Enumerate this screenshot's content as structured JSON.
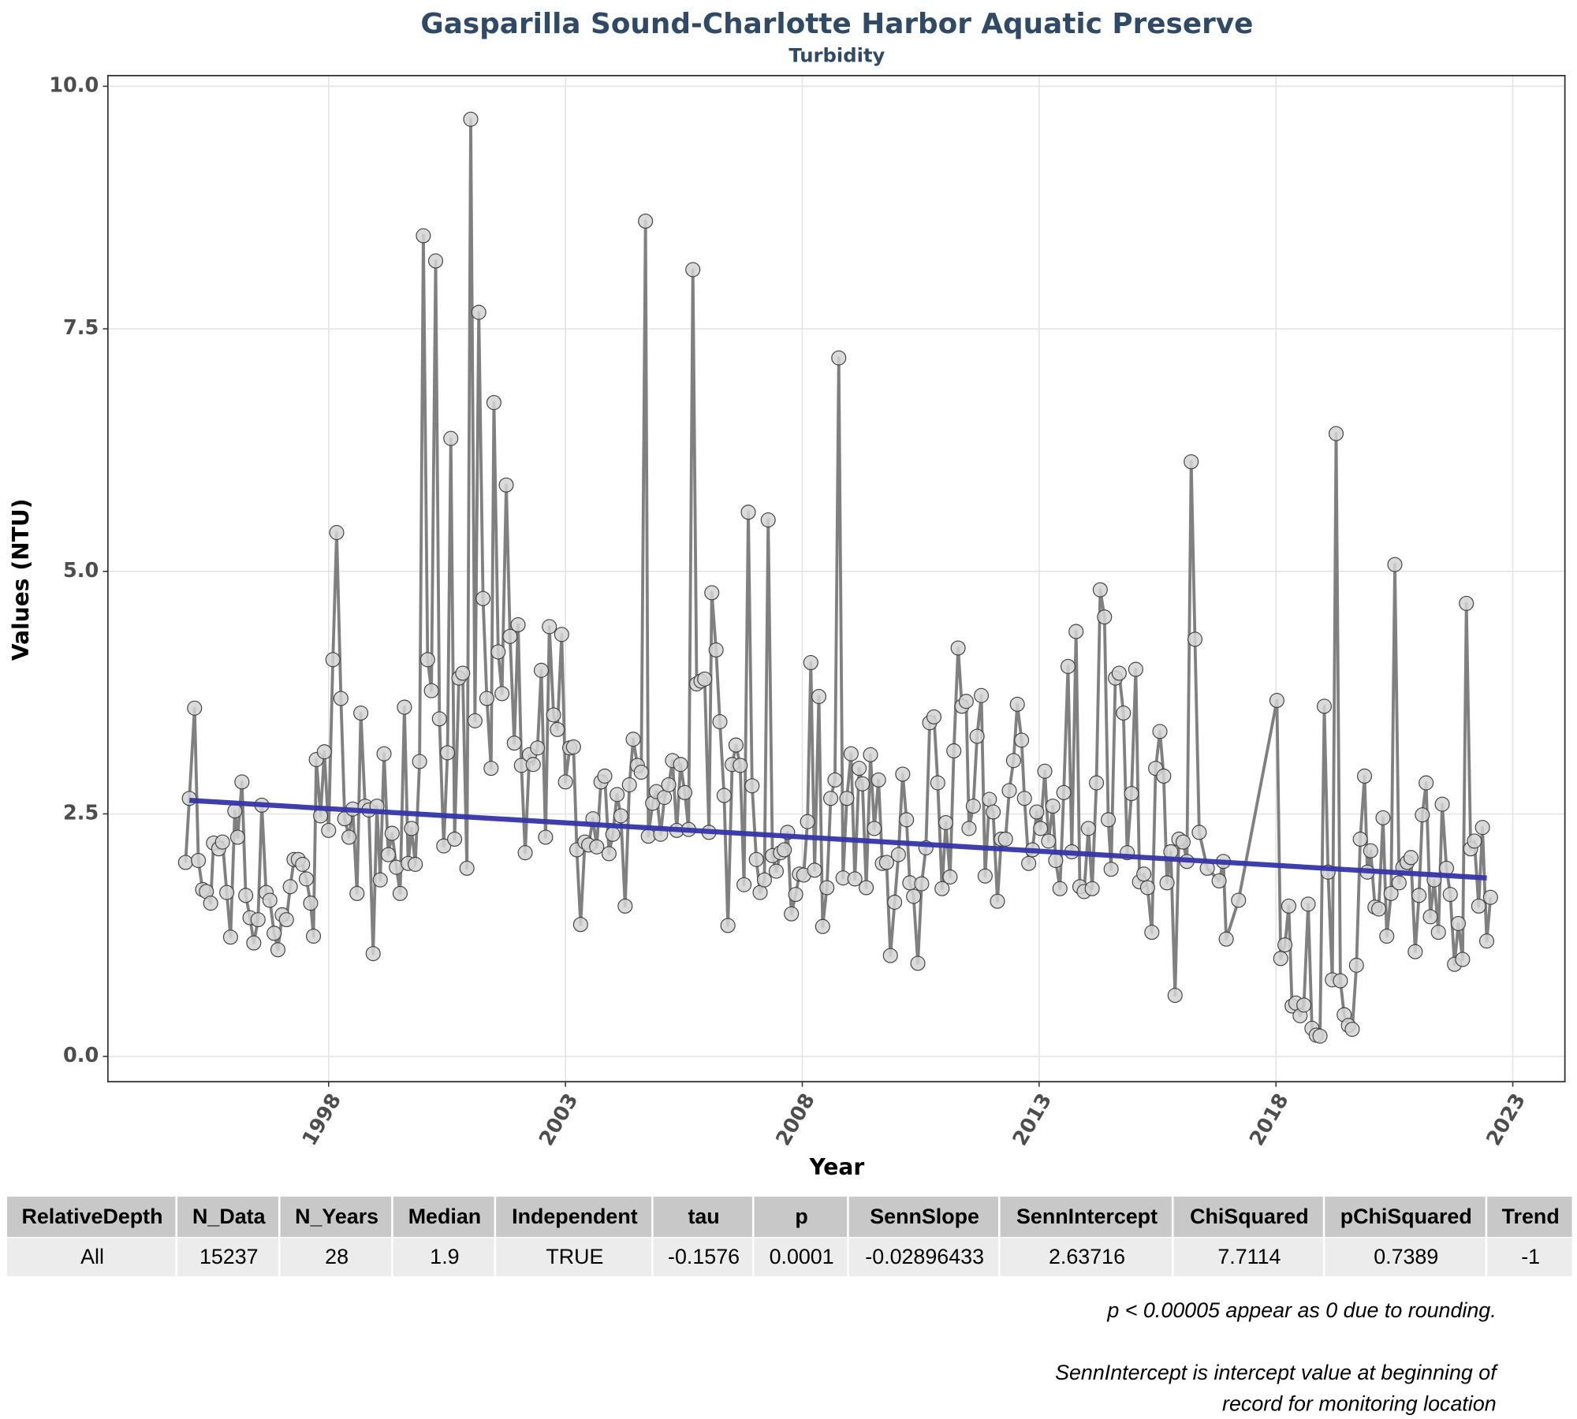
{
  "chart_data": {
    "type": "line",
    "title": "Gasparilla Sound-Charlotte Harbor Aquatic Preserve",
    "subtitle": "Turbidity",
    "x_label": "Year",
    "y_label": "Values (NTU)",
    "xlim": [
      1993.34,
      2024.1
    ],
    "ylim": [
      -0.26,
      10.11
    ],
    "xticks": [
      1998,
      2003,
      2008,
      2013,
      2018,
      2023
    ],
    "yticks": [
      {
        "value": 0,
        "label": "0.0"
      },
      2.5,
      {
        "value": 5,
        "label": "5.0"
      },
      7.5,
      {
        "value": 10,
        "label": "10.0"
      }
    ],
    "grid": true,
    "x": [
      1994.98,
      1995.06,
      1995.17,
      1995.25,
      1995.34,
      1995.42,
      1995.51,
      1995.57,
      1995.68,
      1995.76,
      1995.85,
      1995.93,
      1996.02,
      1996.08,
      1996.17,
      1996.25,
      1996.34,
      1996.42,
      1996.51,
      1996.59,
      1996.68,
      1996.76,
      1996.85,
      1996.93,
      1997.02,
      1997.11,
      1997.19,
      1997.27,
      1997.36,
      1997.45,
      1997.53,
      1997.62,
      1997.68,
      1997.74,
      1997.83,
      1997.91,
      1998.0,
      1998.09,
      1998.17,
      1998.26,
      1998.34,
      1998.43,
      1998.51,
      1998.6,
      1998.68,
      1998.77,
      1998.85,
      1998.94,
      1999.02,
      1999.09,
      1999.17,
      1999.26,
      1999.34,
      1999.43,
      1999.51,
      1999.6,
      1999.68,
      1999.75,
      1999.83,
      1999.92,
      2000.0,
      2000.09,
      2000.17,
      2000.26,
      2000.34,
      2000.43,
      2000.51,
      2000.58,
      2000.66,
      2000.75,
      2000.83,
      2000.92,
      2001.0,
      2001.09,
      2001.17,
      2001.26,
      2001.34,
      2001.43,
      2001.49,
      2001.58,
      2001.66,
      2001.75,
      2001.83,
      2001.92,
      2002.0,
      2002.07,
      2002.15,
      2002.24,
      2002.32,
      2002.41,
      2002.49,
      2002.58,
      2002.66,
      2002.75,
      2002.83,
      2002.92,
      2003.0,
      2003.09,
      2003.17,
      2003.24,
      2003.32,
      2003.41,
      2003.49,
      2003.58,
      2003.66,
      2003.75,
      2003.83,
      2003.92,
      2004.0,
      2004.09,
      2004.17,
      2004.26,
      2004.35,
      2004.43,
      2004.52,
      2004.6,
      2004.69,
      2004.75,
      2004.84,
      2004.92,
      2005.01,
      2005.09,
      2005.18,
      2005.26,
      2005.35,
      2005.43,
      2005.52,
      2005.6,
      2005.69,
      2005.77,
      2005.86,
      2005.94,
      2006.03,
      2006.09,
      2006.18,
      2006.26,
      2006.35,
      2006.43,
      2006.52,
      2006.6,
      2006.69,
      2006.77,
      2006.86,
      2006.94,
      2007.03,
      2007.11,
      2007.2,
      2007.28,
      2007.37,
      2007.45,
      2007.54,
      2007.62,
      2007.69,
      2007.77,
      2007.86,
      2007.94,
      2008.03,
      2008.11,
      2008.18,
      2008.26,
      2008.35,
      2008.43,
      2008.52,
      2008.6,
      2008.69,
      2008.77,
      2008.86,
      2008.94,
      2009.03,
      2009.11,
      2009.2,
      2009.27,
      2009.35,
      2009.44,
      2009.52,
      2009.61,
      2009.69,
      2009.78,
      2009.86,
      2009.95,
      2010.03,
      2010.12,
      2010.2,
      2010.27,
      2010.35,
      2010.44,
      2010.52,
      2010.61,
      2010.69,
      2010.78,
      2010.86,
      2010.95,
      2011.03,
      2011.12,
      2011.2,
      2011.29,
      2011.37,
      2011.46,
      2011.52,
      2011.61,
      2011.69,
      2011.78,
      2011.86,
      2011.95,
      2012.03,
      2012.12,
      2012.2,
      2012.29,
      2012.37,
      2012.46,
      2012.54,
      2012.63,
      2012.69,
      2012.78,
      2012.86,
      2012.95,
      2013.03,
      2013.12,
      2013.2,
      2013.29,
      2013.35,
      2013.44,
      2013.52,
      2013.61,
      2013.69,
      2013.78,
      2013.86,
      2013.95,
      2014.04,
      2014.12,
      2014.21,
      2014.29,
      2014.38,
      2014.46,
      2014.52,
      2014.61,
      2014.69,
      2014.78,
      2014.86,
      2014.95,
      2015.04,
      2015.12,
      2015.21,
      2015.29,
      2015.38,
      2015.46,
      2015.55,
      2015.63,
      2015.7,
      2015.78,
      2015.87,
      2015.95,
      2016.04,
      2016.12,
      2016.21,
      2016.29,
      2016.38,
      2016.55,
      2016.8,
      2016.89,
      2016.95,
      2017.21,
      2018.02,
      2018.1,
      2018.19,
      2018.27,
      2018.34,
      2018.42,
      2018.51,
      2018.59,
      2018.68,
      2018.76,
      2018.85,
      2018.93,
      2019.02,
      2019.1,
      2019.19,
      2019.27,
      2019.36,
      2019.44,
      2019.53,
      2019.61,
      2019.7,
      2019.78,
      2019.87,
      2019.93,
      2020.0,
      2020.09,
      2020.17,
      2020.26,
      2020.34,
      2020.43,
      2020.51,
      2020.6,
      2020.68,
      2020.77,
      2020.85,
      2020.94,
      2021.02,
      2021.09,
      2021.17,
      2021.26,
      2021.34,
      2021.43,
      2021.51,
      2021.6,
      2021.68,
      2021.77,
      2021.85,
      2021.94,
      2022.02,
      2022.11,
      2022.19,
      2022.28,
      2022.36,
      2022.45,
      2022.53
    ],
    "series": [
      {
        "color": "#808080",
        "marker_color": "#d3d3d3",
        "marker_edge": "#404040",
        "values": [
          2.0,
          2.66,
          3.59,
          2.02,
          1.72,
          1.7,
          1.58,
          2.2,
          2.14,
          2.21,
          1.69,
          1.23,
          2.53,
          2.26,
          2.83,
          1.66,
          1.43,
          1.17,
          1.41,
          2.59,
          1.69,
          1.61,
          1.27,
          1.1,
          1.46,
          1.41,
          1.75,
          2.03,
          2.03,
          1.98,
          1.83,
          1.58,
          1.24,
          3.06,
          2.48,
          3.14,
          2.33,
          4.09,
          5.4,
          3.69,
          2.45,
          2.26,
          2.55,
          1.68,
          3.54,
          2.58,
          2.54,
          1.06,
          2.58,
          1.82,
          3.12,
          2.08,
          2.3,
          1.95,
          1.68,
          3.6,
          1.99,
          2.35,
          1.98,
          3.04,
          8.46,
          4.09,
          3.77,
          8.2,
          3.48,
          2.17,
          3.13,
          6.37,
          2.24,
          3.9,
          3.95,
          1.94,
          9.66,
          3.46,
          7.67,
          4.72,
          3.69,
          2.97,
          6.74,
          4.17,
          3.74,
          5.89,
          4.33,
          3.23,
          4.45,
          3.0,
          2.1,
          3.11,
          3.01,
          3.18,
          3.98,
          2.26,
          4.43,
          3.52,
          3.37,
          4.35,
          2.83,
          3.18,
          3.19,
          2.13,
          1.36,
          2.21,
          2.18,
          2.45,
          2.16,
          2.83,
          2.89,
          2.09,
          2.29,
          2.7,
          2.48,
          1.55,
          2.8,
          3.27,
          3.0,
          2.93,
          8.61,
          2.27,
          2.61,
          2.73,
          2.29,
          2.67,
          2.8,
          3.05,
          2.33,
          3.01,
          2.72,
          2.34,
          8.11,
          3.84,
          3.87,
          3.89,
          2.31,
          4.78,
          4.19,
          3.45,
          2.69,
          1.35,
          3.01,
          3.21,
          3.0,
          1.77,
          5.61,
          2.79,
          2.03,
          1.69,
          1.82,
          5.53,
          2.07,
          1.91,
          2.1,
          2.13,
          2.31,
          1.47,
          1.67,
          1.88,
          1.87,
          2.42,
          4.06,
          1.92,
          3.71,
          1.34,
          1.74,
          2.66,
          2.85,
          7.2,
          1.84,
          2.66,
          3.12,
          1.83,
          2.97,
          2.81,
          1.74,
          3.11,
          2.35,
          2.85,
          1.99,
          2.0,
          1.04,
          1.59,
          2.08,
          2.91,
          2.44,
          1.79,
          1.65,
          0.96,
          1.78,
          2.15,
          3.44,
          3.5,
          2.82,
          1.73,
          2.41,
          1.85,
          3.15,
          4.21,
          3.61,
          3.66,
          2.35,
          2.58,
          3.3,
          3.72,
          1.86,
          2.65,
          2.52,
          1.6,
          2.24,
          2.24,
          2.74,
          3.05,
          3.63,
          3.26,
          2.66,
          1.99,
          2.13,
          2.52,
          2.35,
          2.94,
          2.22,
          2.58,
          2.02,
          1.73,
          2.72,
          4.02,
          2.11,
          4.38,
          1.75,
          1.7,
          2.35,
          1.73,
          2.82,
          4.81,
          4.53,
          2.44,
          1.93,
          3.9,
          3.95,
          3.54,
          2.1,
          2.71,
          3.99,
          1.8,
          1.88,
          1.74,
          1.28,
          2.97,
          3.35,
          2.89,
          1.79,
          2.11,
          0.63,
          2.24,
          2.21,
          2.01,
          6.13,
          4.3,
          2.31,
          1.94,
          1.81,
          2.01,
          1.21,
          1.61,
          3.67,
          1.01,
          1.15,
          1.55,
          0.52,
          0.55,
          0.42,
          0.53,
          1.57,
          0.29,
          0.22,
          0.21,
          3.61,
          1.9,
          0.79,
          6.42,
          0.78,
          0.43,
          0.32,
          0.28,
          0.94,
          2.24,
          2.89,
          1.9,
          2.12,
          1.54,
          1.52,
          2.46,
          1.24,
          1.68,
          5.07,
          1.79,
          1.95,
          2.0,
          2.05,
          1.08,
          1.66,
          2.49,
          2.82,
          1.44,
          1.82,
          1.28,
          2.6,
          1.94,
          1.67,
          0.95,
          1.37,
          1.0,
          4.67,
          2.14,
          2.22,
          1.55,
          2.36,
          1.19,
          1.64
        ]
      }
    ],
    "trend": {
      "x": [
        1995.06,
        2022.45
      ],
      "values": [
        2.64,
        1.84
      ],
      "color": "#3434a8"
    }
  },
  "table": {
    "columns": [
      "RelativeDepth",
      "N_Data",
      "N_Years",
      "Median",
      "Independent",
      "tau",
      "p",
      "SennSlope",
      "SennIntercept",
      "ChiSquared",
      "pChiSquared",
      "Trend"
    ],
    "rows": [
      [
        "All",
        15237,
        28,
        1.9,
        "TRUE",
        -0.1576,
        0.0001,
        -0.02896433,
        2.63716,
        7.7114,
        0.7389,
        -1
      ]
    ]
  },
  "notes": [
    "p < 0.00005 appear as 0 due to rounding.",
    "SennIntercept is intercept value at beginning of",
    "record for monitoring location"
  ]
}
